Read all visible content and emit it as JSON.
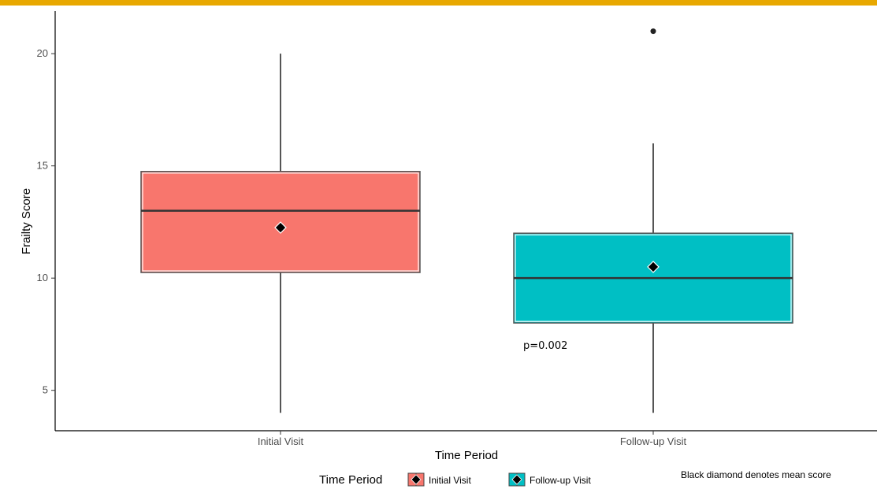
{
  "colors": {
    "top_bar": "#e8a800",
    "initial": "#f8766d",
    "followup": "#00bfc4",
    "axis": "#000000",
    "whisker": "#555555",
    "mean_marker": "#000000"
  },
  "chart_data": {
    "type": "box",
    "xlabel": "Time Period",
    "ylabel": "Frailty Score",
    "ylim": [
      3.2,
      21.9
    ],
    "yticks": [
      5,
      10,
      15,
      20
    ],
    "categories": [
      "Initial Visit",
      "Follow-up Visit"
    ],
    "series": [
      {
        "name": "Initial Visit",
        "color": "#f8766d",
        "whisker_low": 4,
        "q1": 10.25,
        "median": 13,
        "q3": 14.75,
        "whisker_high": 20,
        "mean": 12.25,
        "outliers": []
      },
      {
        "name": "Follow-up Visit",
        "color": "#00bfc4",
        "whisker_low": 4,
        "q1": 8,
        "median": 10,
        "q3": 12,
        "whisker_high": 16,
        "mean": 10.5,
        "outliers": [
          21
        ]
      }
    ],
    "annotation": "p=0.002",
    "legend": {
      "title": "Time Period",
      "position": "bottom",
      "items": [
        "Initial Visit",
        "Follow-up Visit"
      ]
    },
    "footnote": "Black diamond denotes mean score",
    "grid": false
  }
}
